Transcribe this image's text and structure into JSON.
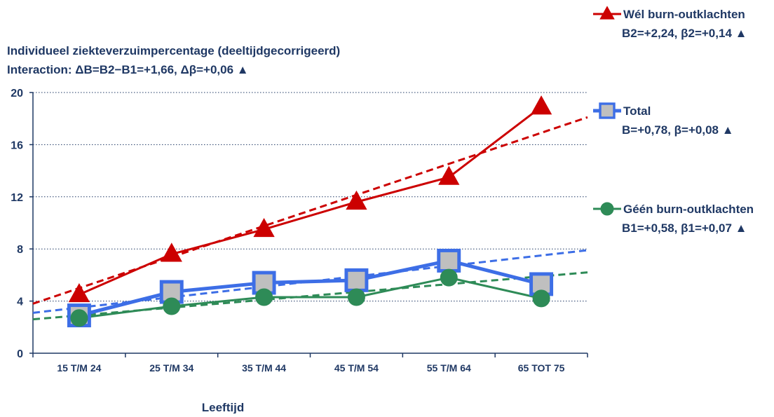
{
  "chart_data": {
    "type": "line",
    "title_lines": [
      "Individueel ziekteverzuimpercentage (deeltijdgecorrigeerd)",
      "Interaction: ΔB=B2−B1=+1,66, Δβ=+0,06 ▲"
    ],
    "xlabel": "Leeftijd",
    "ylabel": "",
    "categories": [
      "15 T/M 24",
      "25 T/M 34",
      "35 T/M 44",
      "45 T/M 54",
      "55 T/M 64",
      "65 TOT 75"
    ],
    "ylim": [
      0,
      20
    ],
    "yticks": [
      0,
      4,
      8,
      12,
      16,
      20
    ],
    "grid": "horizontal dotted",
    "legend_placement": "right",
    "series": [
      {
        "name": "Wél burn-outklachten",
        "stats": "B2=+2,24, β2=+0,14 ▲",
        "marker": "triangle",
        "color": "#cc0000",
        "values": [
          4.5,
          7.6,
          9.5,
          11.6,
          13.5,
          18.9
        ],
        "trend": [
          3.8,
          18.1
        ]
      },
      {
        "name": "Total",
        "stats": "B=+0,78, β=+0,08 ▲",
        "marker": "square",
        "color": "#3d6ee6",
        "fill": "#bfbfbf",
        "values": [
          2.9,
          4.7,
          5.4,
          5.6,
          7.1,
          5.3
        ],
        "trend": [
          3.1,
          7.9
        ]
      },
      {
        "name": "Géén burn-outklachten",
        "stats": "B1=+0,58, β1=+0,07 ▲",
        "marker": "circle",
        "color": "#2e8b57",
        "values": [
          2.7,
          3.6,
          4.3,
          4.3,
          5.8,
          4.2
        ],
        "trend": [
          2.6,
          6.2
        ]
      }
    ]
  }
}
